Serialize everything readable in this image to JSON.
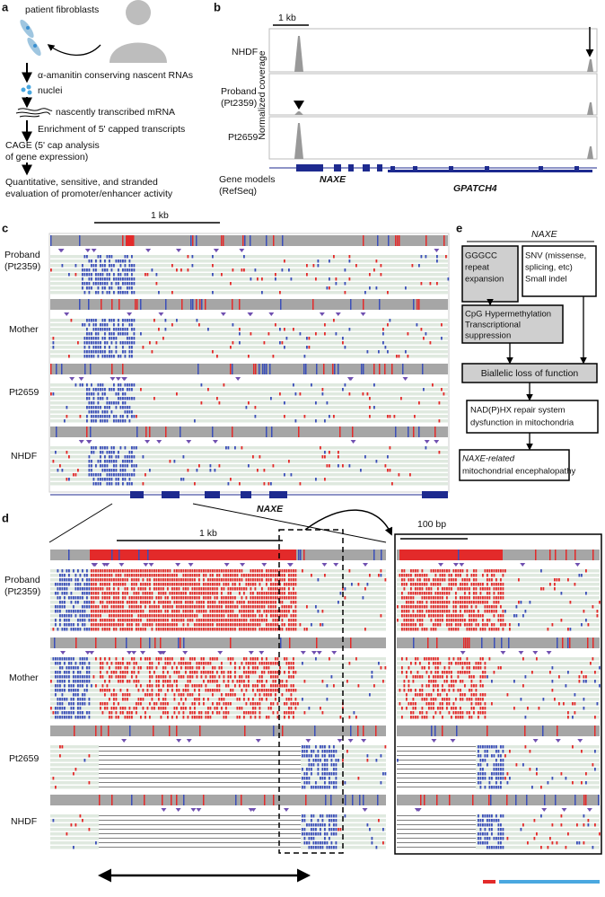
{
  "panel_a": {
    "label": "a",
    "items": [
      "patient fibroblasts",
      "α-amanitin conserving nascent RNAs",
      "nuclei",
      "nascently transcribed mRNA",
      "Enrichment of 5' capped transcripts",
      "CAGE (5' cap analysis",
      "of gene expression)",
      "Quantitative, sensitive, and stranded",
      "evaluation of promoter/enhancer activity"
    ]
  },
  "panel_b": {
    "label": "b",
    "scale": "1 kb",
    "samples": [
      [
        "NHDF"
      ],
      [
        "Proband",
        "(Pt2359)"
      ],
      [
        "Pt2659"
      ]
    ],
    "y_axis": "Normalized coverage",
    "gene_track": [
      "Gene models",
      "(RefSeq)"
    ],
    "genes": [
      "NAXE",
      "GPATCH4"
    ]
  },
  "panel_c": {
    "label": "c",
    "scale": "1 kb",
    "samples": [
      [
        "Proband",
        "(Pt2359)"
      ],
      [
        "Mother"
      ],
      [
        "Pt2659"
      ],
      [
        "NHDF"
      ]
    ],
    "gene": "NAXE"
  },
  "panel_d": {
    "label": "d",
    "scale": "1 kb",
    "zoom_scale": "100 bp",
    "samples": [
      [
        "Proband",
        "(Pt2359)"
      ],
      [
        "Mother"
      ],
      [
        "Pt2659"
      ],
      [
        "NHDF"
      ]
    ]
  },
  "panel_e": {
    "label": "e",
    "gene": "NAXE",
    "boxes": [
      [
        "GGGCC",
        "repeat",
        "expansion"
      ],
      [
        "SNV (missense,",
        "splicing, etc)",
        "Small indel"
      ],
      [
        "CpG Hypermethylation",
        "Transcriptional",
        "suppression"
      ],
      [
        "Biallelic loss of function"
      ],
      [
        "NAD(P)HX repair system",
        "dysfunction in mitochondria"
      ],
      [
        "NAXE-related",
        "mitochondrial encephalopathy"
      ]
    ]
  }
}
